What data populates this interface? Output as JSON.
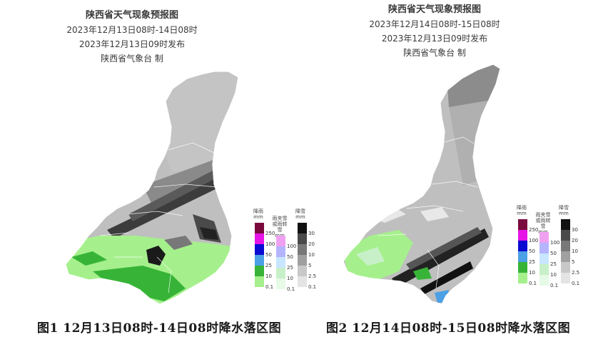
{
  "left": {
    "title": "陕西省天气现象预报图",
    "period": "2023年12月13日08时-14日08时",
    "issued": "2023年12月13日09时发布",
    "agency": "陕西省气象台 制",
    "caption": "图1 12月13日08时-14日08时降水落区图"
  },
  "right": {
    "title": "陕西省天气现象预报图",
    "period": "2023年12月14日08时-15日08时",
    "issued": "2023年12月13日09时发布",
    "agency": "陕西省气象台 制",
    "caption": "图2 12月14日08时-15日08时降水落区图"
  },
  "legend": {
    "rain": {
      "head1": "降雨",
      "head2": "mm",
      "ticks": [
        "250",
        "100",
        "50",
        "25",
        "10",
        "0.1"
      ],
      "colors": [
        "#7a0a3e",
        "#e614e6",
        "#0a0ad2",
        "#4ba0e6",
        "#37b437",
        "#a5f08c"
      ]
    },
    "mix": {
      "head1": "雨夹雪",
      "head2": "或雨转雪",
      "head3": "mm",
      "ticks": [
        "100",
        "50",
        "25",
        "10",
        "0.1"
      ],
      "colors": [
        "#f0a0f0",
        "#b4b4ff",
        "#c8e6ff",
        "#c8f0c8",
        "#e6fae6"
      ]
    },
    "snow": {
      "head1": "降雪",
      "head2": "mm",
      "ticks": [
        "30",
        "20",
        "10",
        "5",
        "2.5",
        "0.1"
      ],
      "colors": [
        "#111111",
        "#4a4a4a",
        "#787878",
        "#a0a0a0",
        "#c8c8c8",
        "#e4e4e4"
      ]
    }
  }
}
